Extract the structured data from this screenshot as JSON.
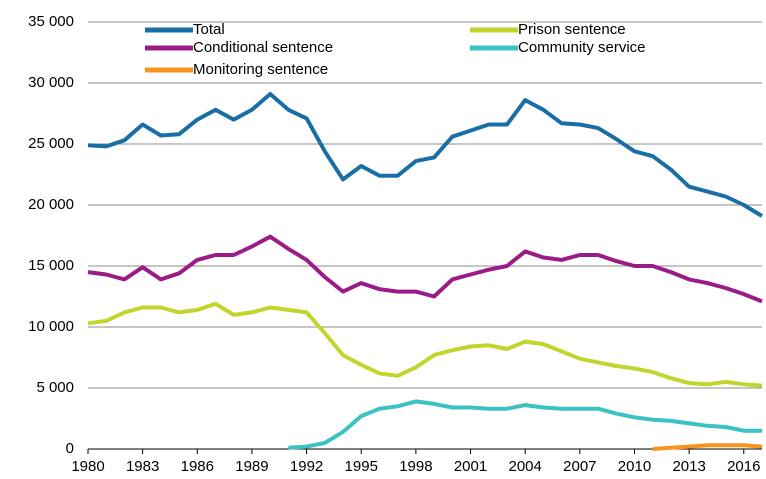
{
  "chart_data": {
    "type": "line",
    "x": [
      1980,
      1981,
      1982,
      1983,
      1984,
      1985,
      1986,
      1987,
      1988,
      1989,
      1990,
      1991,
      1992,
      1993,
      1994,
      1995,
      1996,
      1997,
      1998,
      1999,
      2000,
      2001,
      2002,
      2003,
      2004,
      2005,
      2006,
      2007,
      2008,
      2009,
      2010,
      2011,
      2012,
      2013,
      2014,
      2015,
      2016,
      2017
    ],
    "series": [
      {
        "name": "Total",
        "color": "#1a6ea6",
        "values": [
          24900,
          24800,
          25300,
          26600,
          25700,
          25800,
          27000,
          27800,
          27000,
          27800,
          29100,
          27800,
          27100,
          24400,
          22100,
          23200,
          22400,
          22400,
          23600,
          23900,
          25600,
          26100,
          26600,
          26600,
          28600,
          27800,
          26700,
          26600,
          26300,
          25400,
          24400,
          24000,
          22900,
          21500,
          21100,
          20700,
          20000,
          19100
        ]
      },
      {
        "name": "Prison sentence",
        "color": "#c2d52c",
        "values": [
          10300,
          10500,
          11200,
          11600,
          11600,
          11200,
          11400,
          11900,
          11000,
          11200,
          11600,
          11400,
          11200,
          9500,
          7700,
          6900,
          6200,
          6000,
          6700,
          7700,
          8100,
          8400,
          8500,
          8200,
          8800,
          8600,
          8000,
          7400,
          7100,
          6800,
          6600,
          6300,
          5800,
          5400,
          5300,
          5500,
          5300,
          5200
        ]
      },
      {
        "name": "Conditional sentence",
        "color": "#9a1c89",
        "values": [
          14500,
          14300,
          13900,
          14900,
          13900,
          14400,
          15500,
          15900,
          15900,
          16600,
          17400,
          16400,
          15500,
          14100,
          12900,
          13600,
          13100,
          12900,
          12900,
          12500,
          13900,
          14300,
          14700,
          15000,
          16200,
          15700,
          15500,
          15900,
          15900,
          15400,
          15000,
          15000,
          14500,
          13900,
          13600,
          13200,
          12700,
          12100
        ]
      },
      {
        "name": "Community service",
        "color": "#3cc2c2",
        "values": [
          null,
          null,
          null,
          null,
          null,
          null,
          null,
          null,
          null,
          null,
          null,
          100,
          200,
          500,
          1400,
          2700,
          3300,
          3500,
          3900,
          3700,
          3400,
          3400,
          3300,
          3300,
          3600,
          3400,
          3300,
          3300,
          3300,
          2900,
          2600,
          2400,
          2300,
          2100,
          1900,
          1800,
          1500,
          1500
        ]
      },
      {
        "name": "Monitoring sentence",
        "color": "#f7941d",
        "values": [
          null,
          null,
          null,
          null,
          null,
          null,
          null,
          null,
          null,
          null,
          null,
          null,
          null,
          null,
          null,
          null,
          null,
          null,
          null,
          null,
          null,
          null,
          null,
          null,
          null,
          null,
          null,
          null,
          null,
          null,
          null,
          0,
          100,
          200,
          300,
          300,
          300,
          200
        ]
      }
    ],
    "xlim": [
      1980,
      2017
    ],
    "xticks": [
      1980,
      1983,
      1986,
      1989,
      1992,
      1995,
      1998,
      2001,
      2004,
      2007,
      2010,
      2013,
      2016
    ],
    "ylim": [
      0,
      35000
    ],
    "yticks": [
      0,
      {
        "value": 5000,
        "label": "5 000"
      },
      {
        "value": 10000,
        "label": "10 000"
      },
      {
        "value": 15000,
        "label": "15 000"
      },
      {
        "value": 20000,
        "label": "20 000"
      },
      {
        "value": 25000,
        "label": "25 000"
      },
      {
        "value": 30000,
        "label": "30 000"
      },
      {
        "value": 35000,
        "label": "35 000"
      }
    ],
    "grid": true
  }
}
